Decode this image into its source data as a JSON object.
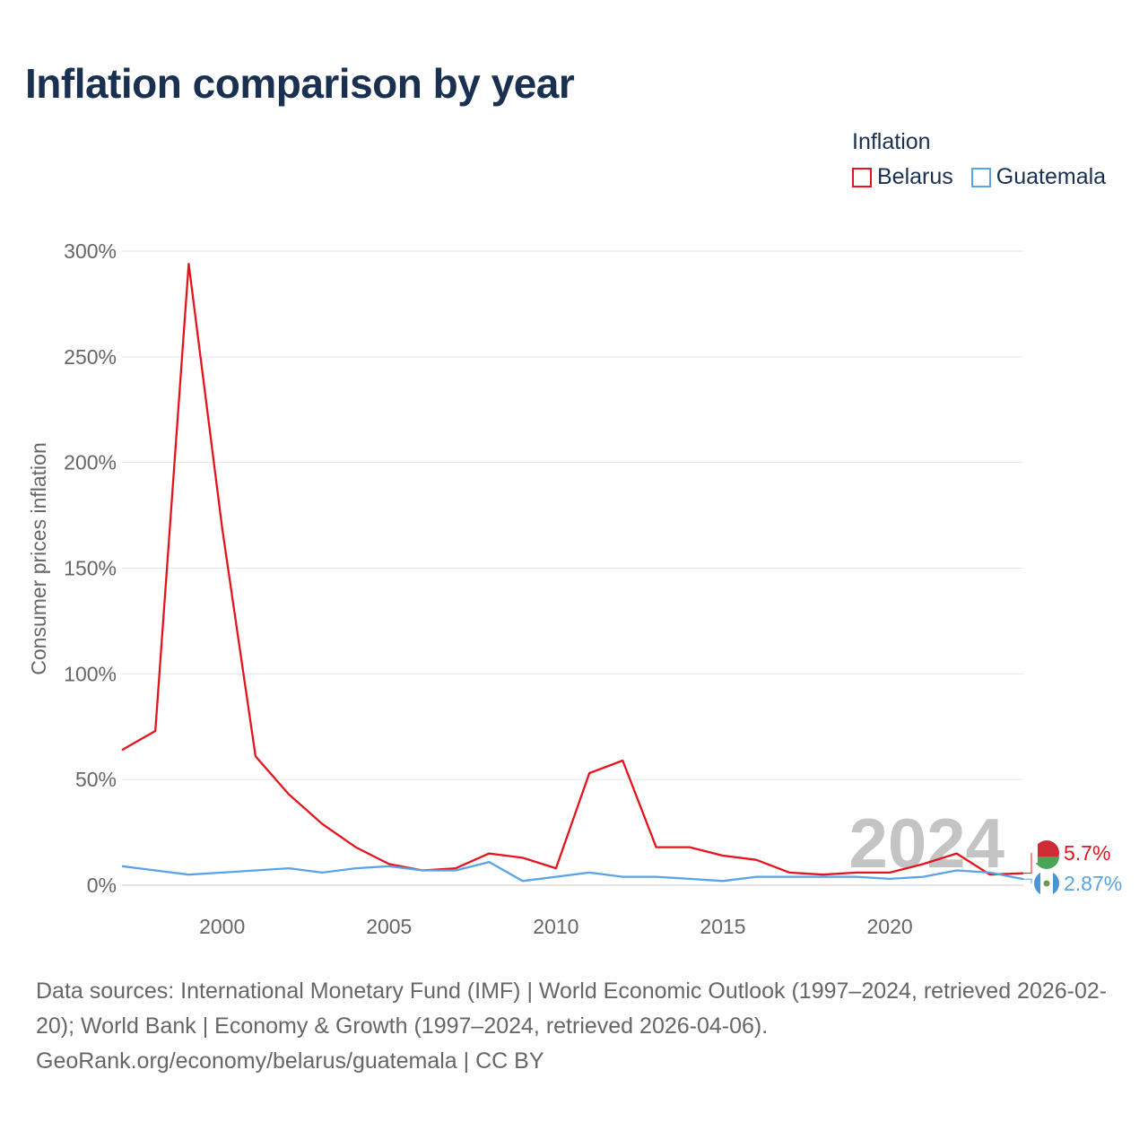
{
  "title": "Inflation comparison by year",
  "legend": {
    "title": "Inflation",
    "items": [
      {
        "name": "Belarus",
        "color": "#e4141c"
      },
      {
        "name": "Guatemala",
        "color": "#5aa4e6"
      }
    ]
  },
  "chart_data": {
    "type": "line",
    "title": "Inflation comparison by year",
    "xlabel": "",
    "ylabel": "Consumer prices inflation",
    "xlim": [
      1997,
      2024
    ],
    "ylim": [
      0,
      300
    ],
    "y_ticks": [
      0,
      50,
      100,
      150,
      200,
      250,
      300
    ],
    "y_tick_labels": [
      "0%",
      "50%",
      "100%",
      "150%",
      "200%",
      "250%",
      "300%"
    ],
    "x_ticks": [
      2000,
      2005,
      2010,
      2015,
      2020
    ],
    "x_tick_labels": [
      "2000",
      "2005",
      "2010",
      "2015",
      "2020"
    ],
    "grid": true,
    "x": [
      1997,
      1998,
      1999,
      2000,
      2001,
      2002,
      2003,
      2004,
      2005,
      2006,
      2007,
      2008,
      2009,
      2010,
      2011,
      2012,
      2013,
      2014,
      2015,
      2016,
      2017,
      2018,
      2019,
      2020,
      2021,
      2022,
      2023,
      2024
    ],
    "series": [
      {
        "name": "Belarus",
        "color": "#e4141c",
        "values": [
          64,
          73,
          294,
          169,
          61,
          43,
          29,
          18,
          10,
          7,
          8,
          15,
          13,
          8,
          53,
          59,
          18,
          18,
          14,
          12,
          6,
          5,
          6,
          6,
          10,
          15,
          5,
          5.7
        ],
        "end_label": "5.7%"
      },
      {
        "name": "Guatemala",
        "color": "#5aa4e6",
        "values": [
          9,
          7,
          5,
          6,
          7,
          8,
          6,
          8,
          9,
          7,
          7,
          11,
          2,
          4,
          6,
          4,
          4,
          3,
          2,
          4,
          4,
          4,
          4,
          3,
          4,
          7,
          6,
          2.87
        ],
        "end_label": "2.87%"
      }
    ],
    "year_watermark": "2024"
  },
  "footer": {
    "line1": "Data sources: International Monetary Fund (IMF) | World Economic Outlook (1997–2024, retrieved 2026-02-20); World Bank | Economy & Growth (1997–2024, retrieved 2026-04-06).",
    "line2": "GeoRank.org/economy/belarus/guatemala | CC BY"
  }
}
